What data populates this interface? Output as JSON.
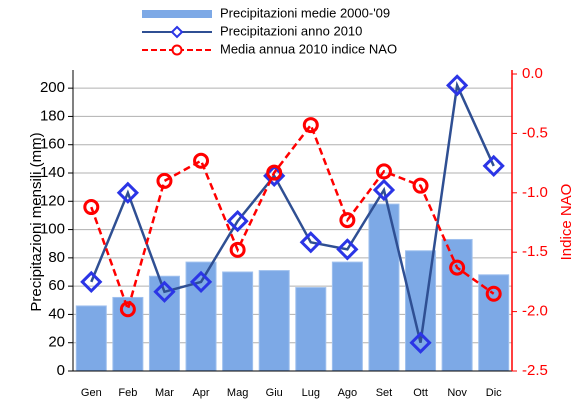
{
  "chart_data": {
    "type": "combo",
    "categories": [
      "Gen",
      "Feb",
      "Mar",
      "Apr",
      "Mag",
      "Giu",
      "Lug",
      "Ago",
      "Set",
      "Ott",
      "Nov",
      "Dic"
    ],
    "series": [
      {
        "name": "Precipitazioni medie 2000-'09",
        "type": "bar",
        "color": "#7da9e6",
        "values": [
          46,
          52,
          67,
          77,
          70,
          71,
          59,
          77,
          118,
          85,
          93,
          68
        ]
      },
      {
        "name": "Precipitazioni anno 2010",
        "type": "line",
        "color": "#2f4f93",
        "marker_color": "#2b35e6",
        "values": [
          63,
          126,
          56,
          63,
          106,
          138,
          91,
          86,
          128,
          20,
          202,
          145
        ]
      },
      {
        "name": "Media annua 2010 indice NAO",
        "type": "line",
        "dashed": true,
        "axis": "y2",
        "color": "#ff0000",
        "values": [
          -1.12,
          -1.98,
          -0.9,
          -0.73,
          -1.48,
          -0.83,
          -0.43,
          -1.23,
          -0.82,
          -0.94,
          -1.63,
          -1.85
        ]
      }
    ],
    "ylabel": "Precipitazioni mensili (mm)",
    "y2label": "Indice NAO",
    "ylim": [
      0,
      210
    ],
    "yticks": [
      0,
      20,
      40,
      60,
      80,
      100,
      120,
      140,
      160,
      180,
      200
    ],
    "y2lim": [
      -2.5,
      0
    ],
    "y2ticks": [
      {
        "value": 0,
        "label": "0.0"
      },
      -0.5,
      {
        "value": -1,
        "label": "-1.0"
      },
      -1.5,
      {
        "value": -2,
        "label": "-2.0"
      },
      -2.5
    ],
    "grid": true
  }
}
